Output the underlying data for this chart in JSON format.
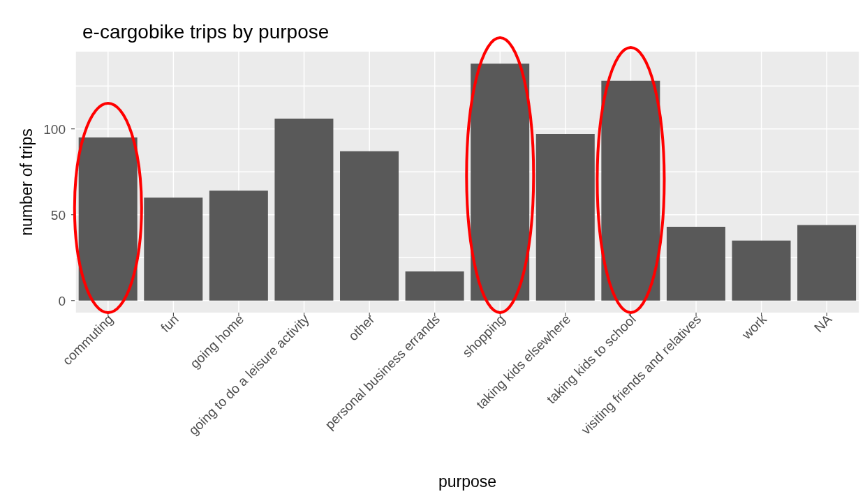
{
  "chart_data": {
    "type": "bar",
    "title": "e-cargobike trips by purpose",
    "xlabel": "purpose",
    "ylabel": "number of trips",
    "categories": [
      "commuting",
      "fun",
      "going home",
      "going to do a leisure activity",
      "other",
      "personal business errands",
      "shopping",
      "taking kids elsewhere",
      "taking kids to school",
      "visiting friends and relatives",
      "work",
      "NA"
    ],
    "values": [
      95,
      60,
      64,
      106,
      87,
      17,
      138,
      97,
      128,
      43,
      35,
      44
    ],
    "color": "#595959",
    "ylim": [
      -7,
      145
    ],
    "yticks": [
      0,
      {
        "value": 25,
        "label": null
      },
      50,
      {
        "value": 75,
        "label": null
      },
      100,
      {
        "value": 125,
        "label": null
      }
    ],
    "grid": true
  }
}
